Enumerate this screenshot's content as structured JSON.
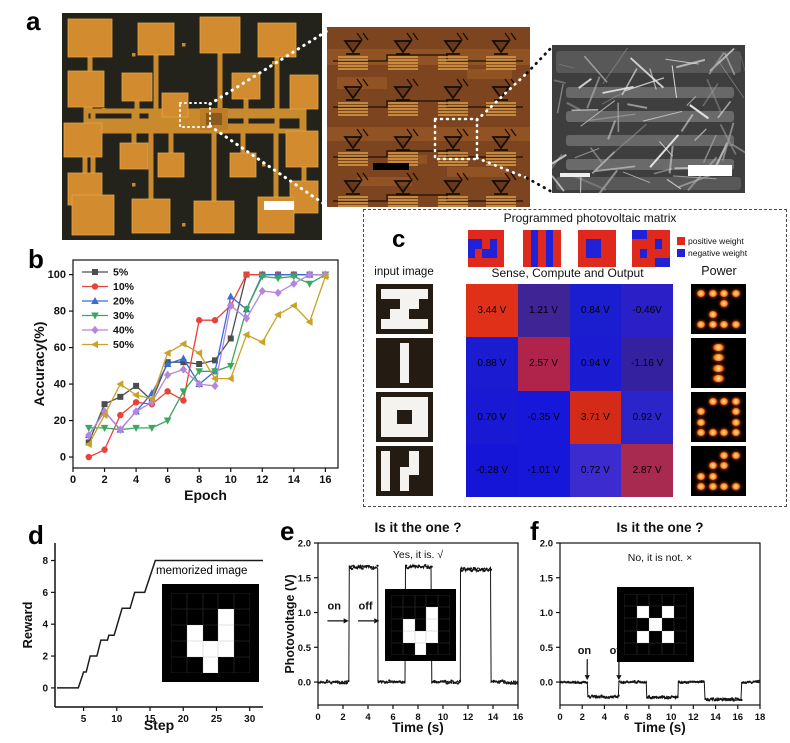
{
  "panels": {
    "a": {
      "label": "a"
    },
    "b": {
      "label": "b"
    },
    "c": {
      "label": "c"
    },
    "d": {
      "label": "d"
    },
    "e": {
      "label": "e"
    },
    "f": {
      "label": "f"
    }
  },
  "panel_c": {
    "title": "Programmed photovoltaic matrix",
    "legend": [
      {
        "label": "positive weight",
        "color": "#e0291d"
      },
      {
        "label": "negative weight",
        "color": "#2121d8"
      }
    ],
    "headers": {
      "input": "input image",
      "main": "Sense, Compute and Output",
      "power": "Power"
    },
    "weight_colors": {
      "positive": "#e0291d",
      "negative": "#2121d8"
    },
    "weight_patterns": [
      {
        "name": "weight-Z",
        "grid": [
          [
            1,
            1,
            1,
            1,
            1
          ],
          [
            0,
            0,
            1,
            0,
            1
          ],
          [
            0,
            1,
            0,
            0,
            1
          ],
          [
            1,
            1,
            1,
            1,
            1
          ]
        ]
      },
      {
        "name": "weight-I",
        "grid": [
          [
            1,
            0,
            1,
            0,
            1
          ],
          [
            1,
            0,
            1,
            0,
            1
          ],
          [
            1,
            0,
            1,
            0,
            1
          ],
          [
            1,
            0,
            1,
            0,
            1
          ]
        ]
      },
      {
        "name": "weight-O",
        "grid": [
          [
            1,
            1,
            1,
            1,
            1
          ],
          [
            1,
            0,
            0,
            1,
            1
          ],
          [
            1,
            0,
            0,
            1,
            1
          ],
          [
            1,
            1,
            1,
            1,
            1
          ]
        ]
      },
      {
        "name": "weight-N",
        "grid": [
          [
            0,
            0,
            1,
            1,
            1
          ],
          [
            1,
            1,
            1,
            0,
            1
          ],
          [
            1,
            0,
            1,
            1,
            1
          ],
          [
            1,
            1,
            1,
            0,
            0
          ]
        ]
      }
    ],
    "input_images": [
      {
        "name": "Z",
        "grid": [
          [
            1,
            1,
            1,
            1,
            1
          ],
          [
            0,
            0,
            1,
            1,
            0
          ],
          [
            0,
            1,
            1,
            0,
            0
          ],
          [
            1,
            1,
            1,
            1,
            1
          ]
        ]
      },
      {
        "name": "I",
        "grid": [
          [
            0,
            0,
            1,
            0,
            0
          ],
          [
            0,
            0,
            1,
            0,
            0
          ],
          [
            0,
            0,
            1,
            0,
            0
          ],
          [
            0,
            0,
            1,
            0,
            0
          ]
        ]
      },
      {
        "name": "O",
        "grid": [
          [
            1,
            1,
            1
          ],
          [
            1,
            0,
            1
          ],
          [
            1,
            1,
            1
          ]
        ]
      },
      {
        "name": "N",
        "grid": [
          [
            1,
            0,
            0,
            1,
            0
          ],
          [
            1,
            0,
            0,
            1,
            0
          ],
          [
            1,
            0,
            1,
            1,
            0
          ],
          [
            1,
            0,
            1,
            0,
            0
          ],
          [
            1,
            0,
            1,
            0,
            0
          ]
        ]
      }
    ],
    "matrix_rows": [
      {
        "input": "Z",
        "cells": [
          {
            "label": "3.44 V",
            "color": "#e03118"
          },
          {
            "label": "1.21 V",
            "color": "#3f2496"
          },
          {
            "label": "0.84 V",
            "color": "#1b1ecf"
          },
          {
            "label": "-0.46V",
            "color": "#2b20c8"
          }
        ]
      },
      {
        "input": "I",
        "cells": [
          {
            "label": "0.88 V",
            "color": "#1b1bd2"
          },
          {
            "label": "2.57 V",
            "color": "#b0244c"
          },
          {
            "label": "0.94 V",
            "color": "#1b1bd2"
          },
          {
            "label": "-1.16 V",
            "color": "#34219f"
          }
        ]
      },
      {
        "input": "O",
        "cells": [
          {
            "label": "0.70 V",
            "color": "#1919d4"
          },
          {
            "label": "-0.35 V",
            "color": "#1717da"
          },
          {
            "label": "3.71 V",
            "color": "#d42a18"
          },
          {
            "label": "0.92 V",
            "color": "#2b24c8"
          }
        ]
      },
      {
        "input": "N",
        "cells": [
          {
            "label": "-0.28 V",
            "color": "#1515d8"
          },
          {
            "label": "-1.01 V",
            "color": "#1717da"
          },
          {
            "label": "0.72 V",
            "color": "#3c2cd0"
          },
          {
            "label": "2.87 V",
            "color": "#a92a50"
          }
        ]
      }
    ],
    "power_images": [
      {
        "name": "power-Z",
        "grid": [
          [
            1,
            1,
            1,
            1
          ],
          [
            0,
            0,
            1,
            0
          ],
          [
            0,
            1,
            0,
            0
          ],
          [
            1,
            1,
            1,
            1
          ]
        ]
      },
      {
        "name": "power-I",
        "grid": [
          [
            0,
            1,
            0
          ],
          [
            0,
            1,
            0
          ],
          [
            0,
            1,
            0
          ],
          [
            0,
            1,
            0
          ]
        ]
      },
      {
        "name": "power-O",
        "grid": [
          [
            0,
            1,
            1,
            1
          ],
          [
            1,
            0,
            0,
            1
          ],
          [
            1,
            0,
            0,
            1
          ],
          [
            1,
            1,
            1,
            1
          ]
        ]
      },
      {
        "name": "power-N",
        "grid": [
          [
            0,
            0,
            1,
            1
          ],
          [
            0,
            1,
            1,
            0
          ],
          [
            1,
            1,
            0,
            0
          ],
          [
            1,
            1,
            1,
            1
          ]
        ]
      }
    ]
  },
  "chart_data": [
    {
      "id": "accuracy",
      "type": "line",
      "xlabel": "Epoch",
      "ylabel": "Accuracy(%)",
      "xlim": [
        0,
        16.8
      ],
      "ylim": [
        -6,
        108
      ],
      "xticks": [
        0,
        2,
        4,
        6,
        8,
        10,
        12,
        14,
        16
      ],
      "yticks": [
        0,
        20,
        40,
        60,
        80,
        100
      ],
      "x": [
        1,
        2,
        3,
        4,
        5,
        6,
        7,
        8,
        9,
        10,
        11,
        12,
        13,
        14,
        15,
        16
      ],
      "legend_position": "top-left",
      "grid": false,
      "series": [
        {
          "name": "5%",
          "color": "#4d4d4d",
          "marker": "square",
          "values": [
            8,
            29,
            33,
            39,
            31,
            52,
            52,
            51,
            53,
            65,
            100,
            100,
            100,
            100,
            100,
            100
          ]
        },
        {
          "name": "10%",
          "color": "#e84339",
          "marker": "circle",
          "values": [
            0,
            4,
            23,
            30,
            29,
            36,
            31,
            75,
            75,
            83,
            100,
            100,
            100,
            100,
            100,
            100
          ]
        },
        {
          "name": "20%",
          "color": "#3b6bd5",
          "marker": "tri-up",
          "values": [
            12,
            25,
            15,
            25,
            35,
            51,
            54,
            40,
            47,
            88,
            81,
            100,
            100,
            100,
            100,
            100
          ]
        },
        {
          "name": "30%",
          "color": "#3aa85e",
          "marker": "tri-down",
          "values": [
            16,
            16,
            15,
            16,
            16,
            20,
            36,
            47,
            47,
            50,
            81,
            99,
            98,
            99,
            95,
            100
          ]
        },
        {
          "name": "40%",
          "color": "#b685e0",
          "marker": "diamond",
          "values": [
            12,
            25,
            15,
            25,
            30,
            45,
            48,
            40,
            39,
            83,
            76,
            91,
            90,
            95,
            100,
            100
          ]
        },
        {
          "name": "50%",
          "color": "#c9a227",
          "marker": "tri-left",
          "values": [
            7,
            23,
            40,
            34,
            32,
            57,
            62,
            57,
            43,
            43,
            67,
            63,
            78,
            83,
            74,
            99
          ]
        }
      ]
    },
    {
      "id": "reward",
      "type": "line",
      "xlabel": "Step",
      "ylabel": "Reward",
      "xlim": [
        0.7,
        32
      ],
      "ylim": [
        -1.2,
        9.1
      ],
      "xticks": [
        5,
        10,
        15,
        20,
        25,
        30
      ],
      "yticks": [
        0,
        2,
        4,
        6,
        8
      ],
      "color": "#1c1c1c",
      "grid": false,
      "points": [
        [
          1,
          0
        ],
        [
          4.2,
          0
        ],
        [
          5,
          1
        ],
        [
          5.4,
          1
        ],
        [
          6,
          2
        ],
        [
          7,
          2
        ],
        [
          7.6,
          3
        ],
        [
          8.6,
          3
        ],
        [
          8.8,
          3.3
        ],
        [
          9.6,
          3.3
        ],
        [
          10.8,
          5
        ],
        [
          12,
          5
        ],
        [
          12.7,
          6
        ],
        [
          14.2,
          6
        ],
        [
          15.8,
          8
        ],
        [
          32,
          8
        ]
      ],
      "inset_caption": "memorized image",
      "inset_grid": [
        [
          0,
          0,
          0,
          0,
          0
        ],
        [
          0,
          0,
          0,
          1,
          0
        ],
        [
          0,
          1,
          0,
          1,
          0
        ],
        [
          0,
          1,
          1,
          1,
          0
        ],
        [
          0,
          0,
          1,
          0,
          0
        ]
      ]
    },
    {
      "id": "recall-yes",
      "type": "line",
      "title": "Is it the one ?",
      "subtitle": "Yes, it is. √",
      "xlabel": "Time (s)",
      "ylabel": "Photovoltage (V)",
      "xlim": [
        0,
        16
      ],
      "ylim": [
        -0.33,
        2.0
      ],
      "xticks": [
        0,
        2,
        4,
        6,
        8,
        10,
        12,
        14,
        16
      ],
      "yticks": [
        0.0,
        0.5,
        1.0,
        1.5,
        2.0
      ],
      "annotations": {
        "on": "on",
        "off": "off"
      },
      "segments": [
        [
          0,
          2.5,
          0
        ],
        [
          2.5,
          4.8,
          1.65
        ],
        [
          4.8,
          7.0,
          0
        ],
        [
          7.0,
          9.1,
          1.66
        ],
        [
          9.1,
          11.4,
          0
        ],
        [
          11.4,
          13.85,
          1.62
        ],
        [
          13.85,
          16,
          0
        ]
      ],
      "inset_grid": [
        [
          0,
          0,
          0,
          0,
          0
        ],
        [
          0,
          0,
          0,
          1,
          0
        ],
        [
          0,
          1,
          0,
          1,
          0
        ],
        [
          0,
          1,
          1,
          1,
          0
        ],
        [
          0,
          0,
          1,
          0,
          0
        ]
      ]
    },
    {
      "id": "recall-no",
      "type": "line",
      "title": "Is it the one ?",
      "subtitle": "No, it is not. ×",
      "xlabel": "Time (s)",
      "ylabel": "",
      "xlim": [
        0,
        18
      ],
      "ylim": [
        -0.33,
        2.0
      ],
      "xticks": [
        0,
        2,
        4,
        6,
        8,
        10,
        12,
        14,
        16,
        18
      ],
      "yticks": [
        0.0,
        0.5,
        1.0,
        1.5,
        2.0
      ],
      "annotations": {
        "on": "on",
        "off": "off"
      },
      "segments": [
        [
          0,
          2.5,
          0
        ],
        [
          2.5,
          5.3,
          -0.21
        ],
        [
          5.3,
          7.8,
          0
        ],
        [
          7.8,
          10.65,
          -0.22
        ],
        [
          10.65,
          13.05,
          0
        ],
        [
          13.05,
          16.35,
          -0.25
        ],
        [
          16.35,
          18,
          0
        ]
      ],
      "inset_grid": [
        [
          0,
          0,
          0,
          0,
          0
        ],
        [
          0,
          1,
          0,
          1,
          0
        ],
        [
          0,
          0,
          1,
          0,
          0
        ],
        [
          0,
          1,
          0,
          1,
          0
        ],
        [
          0,
          0,
          0,
          0,
          0
        ]
      ]
    }
  ]
}
